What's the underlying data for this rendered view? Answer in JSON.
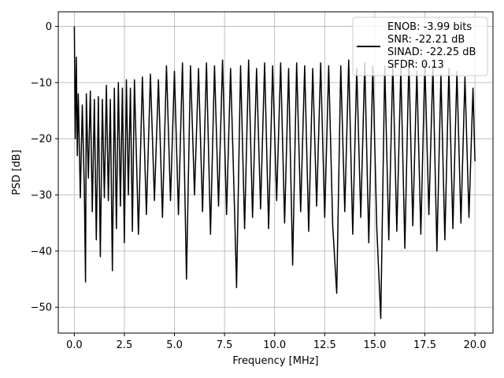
{
  "chart_data": {
    "type": "line",
    "xlabel": "Frequency [MHz]",
    "ylabel": "PSD [dB]",
    "xlim": [
      -0.8,
      20.9
    ],
    "ylim": [
      -54.6,
      2.6
    ],
    "xticks": [
      0,
      2.5,
      5,
      7.5,
      10,
      12.5,
      15,
      17.5,
      20
    ],
    "xtick_labels": [
      "0.0",
      "2.5",
      "5.0",
      "7.5",
      "10.0",
      "12.5",
      "15.0",
      "17.5",
      "20.0"
    ],
    "yticks": [
      0,
      -10,
      -20,
      -30,
      -40,
      -50
    ],
    "ytick_labels": [
      "0",
      "−10",
      "−20",
      "−30",
      "−40",
      "−50"
    ],
    "grid": true,
    "legend_position": "top-right",
    "legend": [
      "ENOB: -3.99 bits",
      "SNR: -22.21 dB",
      "SINAD: -22.25 dB",
      "SFDR: 0.13"
    ],
    "series": [
      {
        "color": "#000000",
        "x": [
          0.0,
          0.05,
          0.1,
          0.15,
          0.2,
          0.3,
          0.4,
          0.5,
          0.56,
          0.6,
          0.7,
          0.8,
          0.9,
          1.0,
          1.1,
          1.2,
          1.3,
          1.4,
          1.5,
          1.6,
          1.7,
          1.8,
          1.9,
          2.0,
          2.1,
          2.2,
          2.3,
          2.4,
          2.5,
          2.6,
          2.7,
          2.8,
          2.9,
          3.0,
          3.2,
          3.4,
          3.6,
          3.8,
          4.0,
          4.2,
          4.4,
          4.6,
          4.8,
          5.0,
          5.2,
          5.4,
          5.6,
          5.8,
          6.0,
          6.2,
          6.4,
          6.6,
          6.8,
          7.0,
          7.2,
          7.4,
          7.6,
          7.8,
          8.0,
          8.1,
          8.3,
          8.5,
          8.7,
          8.9,
          9.1,
          9.3,
          9.5,
          9.7,
          9.9,
          10.1,
          10.3,
          10.5,
          10.7,
          10.9,
          11.1,
          11.3,
          11.5,
          11.7,
          11.9,
          12.1,
          12.3,
          12.5,
          12.7,
          12.9,
          13.1,
          13.3,
          13.5,
          13.7,
          13.9,
          14.1,
          14.3,
          14.5,
          14.7,
          14.9,
          15.1,
          15.3,
          15.5,
          15.7,
          15.9,
          16.1,
          16.3,
          16.5,
          16.7,
          16.9,
          17.1,
          17.3,
          17.5,
          17.7,
          17.9,
          18.1,
          18.3,
          18.5,
          18.7,
          18.9,
          19.1,
          19.3,
          19.5,
          19.7,
          19.9,
          20.0
        ],
        "y": [
          0.0,
          -20.0,
          -5.5,
          -23.0,
          -12.0,
          -30.5,
          -14.0,
          -29.0,
          -45.5,
          -12.0,
          -27.0,
          -11.5,
          -33.0,
          -13.0,
          -38.0,
          -12.5,
          -41.0,
          -13.0,
          -30.5,
          -10.5,
          -31.0,
          -13.0,
          -43.5,
          -11.0,
          -36.0,
          -10.0,
          -32.0,
          -11.0,
          -38.5,
          -9.5,
          -30.0,
          -11.0,
          -36.5,
          -9.5,
          -37.0,
          -9.0,
          -33.5,
          -8.5,
          -31.0,
          -9.5,
          -34.0,
          -7.0,
          -31.0,
          -8.0,
          -33.5,
          -6.5,
          -45.0,
          -7.0,
          -30.0,
          -7.5,
          -33.0,
          -6.5,
          -37.0,
          -7.0,
          -32.0,
          -6.0,
          -33.5,
          -7.5,
          -33.0,
          -46.5,
          -7.0,
          -36.0,
          -6.0,
          -34.0,
          -7.5,
          -32.5,
          -6.5,
          -36.0,
          -7.0,
          -31.0,
          -6.5,
          -35.0,
          -7.5,
          -42.5,
          -6.5,
          -33.0,
          -7.0,
          -36.5,
          -7.5,
          -32.0,
          -6.5,
          -34.0,
          -7.0,
          -35.5,
          -47.5,
          -7.0,
          -33.0,
          -6.0,
          -37.0,
          -7.5,
          -34.0,
          -6.5,
          -38.5,
          -7.0,
          -36.0,
          -52.0,
          -7.0,
          -38.0,
          -6.5,
          -36.5,
          -7.5,
          -39.5,
          -6.0,
          -35.5,
          -8.0,
          -37.0,
          -6.5,
          -33.5,
          -7.0,
          -40.0,
          -8.5,
          -38.0,
          -7.5,
          -36.0,
          -8.0,
          -35.0,
          -9.0,
          -34.0,
          -11.0,
          -24.0
        ]
      }
    ]
  }
}
